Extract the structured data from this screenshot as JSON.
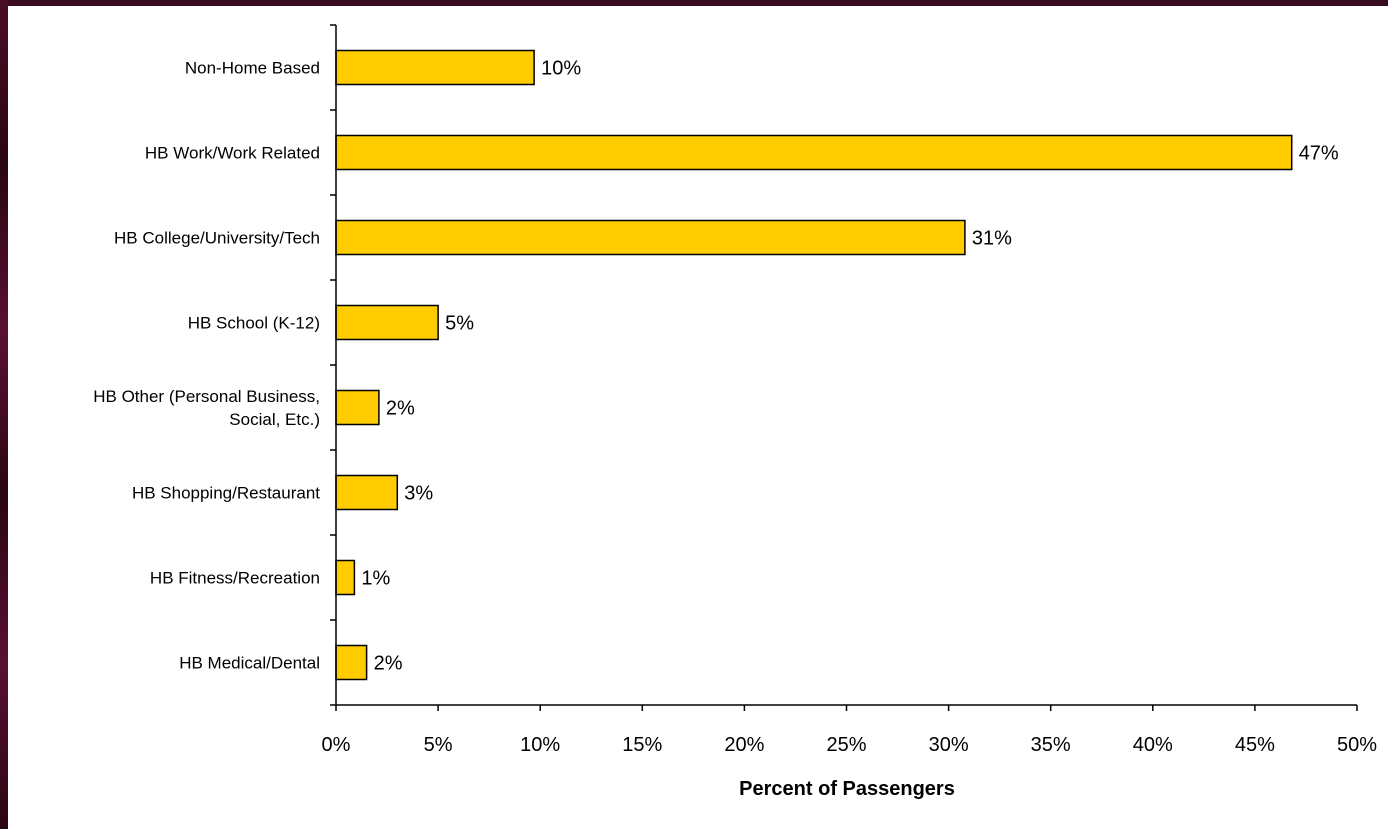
{
  "chart_data": {
    "type": "bar",
    "orientation": "horizontal",
    "categories": [
      "Non-Home Based",
      "HB Work/Work Related",
      "HB College/University/Tech",
      "HB School (K-12)",
      "HB Other (Personal Business, Social, Etc.)",
      "HB Shopping/Restaurant",
      "HB Fitness/Recreation",
      "HB Medical/Dental"
    ],
    "category_lines": [
      [
        "Non-Home Based"
      ],
      [
        "HB Work/Work Related"
      ],
      [
        "HB College/University/Tech"
      ],
      [
        "HB School (K-12)"
      ],
      [
        "HB Other (Personal Business,",
        "Social, Etc.)"
      ],
      [
        "HB Shopping/Restaurant"
      ],
      [
        "HB Fitness/Recreation"
      ],
      [
        "HB Medical/Dental"
      ]
    ],
    "values": [
      9.7,
      46.8,
      30.8,
      5.0,
      2.1,
      3.0,
      0.9,
      1.5
    ],
    "data_labels": [
      "10%",
      "47%",
      "31%",
      "5%",
      "2%",
      "3%",
      "1%",
      "2%"
    ],
    "xlim": [
      0,
      50
    ],
    "xticks": [
      0,
      5,
      10,
      15,
      20,
      25,
      30,
      35,
      40,
      45,
      50
    ],
    "xtick_labels": [
      "0%",
      "5%",
      "10%",
      "15%",
      "20%",
      "25%",
      "30%",
      "35%",
      "40%",
      "45%",
      "50%"
    ],
    "xlabel": "Percent of Passengers",
    "ylabel": "",
    "title": "",
    "grid": false,
    "legend": "none",
    "bar_color": "#ffcc00",
    "bar_edge_color": "#000000"
  }
}
